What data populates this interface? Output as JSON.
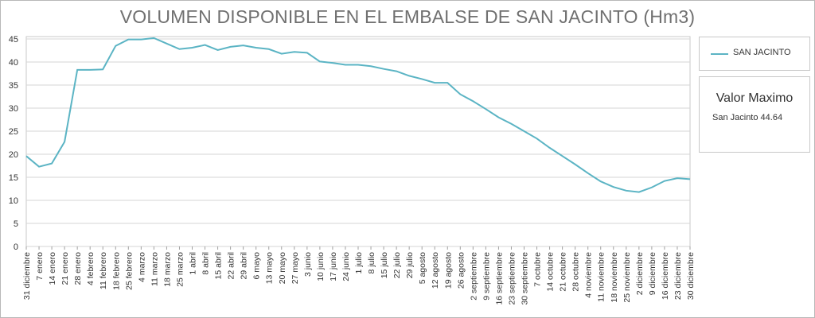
{
  "chart_data": {
    "type": "line",
    "title": "VOLUMEN DISPONIBLE EN EL EMBALSE DE SAN JACINTO (Hm3)",
    "xlabel": "",
    "ylabel": "",
    "ylim": [
      0,
      45
    ],
    "yticks": [
      0,
      5,
      10,
      15,
      20,
      25,
      30,
      35,
      40,
      45
    ],
    "grid": true,
    "legend_position": "right",
    "series_color": "#5bb4c4",
    "categories": [
      "31 diciembre",
      "7 enero",
      "14 enero",
      "21 enero",
      "28 enero",
      "4 febrero",
      "11 febrero",
      "18 febrero",
      "25 febrero",
      "4 marzo",
      "11 marzo",
      "18 marzo",
      "25 marzo",
      "1 abril",
      "8 abril",
      "15 abril",
      "22 abril",
      "29 abril",
      "6 mayo",
      "13 mayo",
      "20 mayo",
      "27 mayo",
      "3 junio",
      "10 junio",
      "17 junio",
      "24 junio",
      "1 julio",
      "8 julio",
      "15 julio",
      "22 julio",
      "29 julio",
      "5 agosto",
      "12 agosto",
      "19 agosto",
      "26 agosto",
      "2 septiembre",
      "9 septiembre",
      "16 septiembre",
      "23 septiembre",
      "30 septiembre",
      "7 octubre",
      "14 octubre",
      "21 octubre",
      "28 octubre",
      "4 noviembre",
      "11 noviembre",
      "18 noviembre",
      "25 noviembre",
      "2 diciembre",
      "9 diciembre",
      "16 diciembre",
      "23 diciembre",
      "30 diciembre"
    ],
    "series": [
      {
        "name": "SAN JACINTO",
        "values": [
          19.6,
          17.3,
          18.0,
          22.7,
          38.3,
          38.3,
          38.4,
          43.5,
          44.9,
          44.9,
          45.2,
          44.0,
          42.8,
          43.1,
          43.7,
          42.6,
          43.3,
          43.6,
          43.1,
          42.8,
          41.8,
          42.2,
          42.0,
          40.1,
          39.8,
          39.4,
          39.4,
          39.1,
          38.5,
          38.0,
          37.0,
          36.3,
          35.5,
          35.5,
          33.0,
          31.5,
          29.8,
          28.0,
          26.6,
          25.0,
          23.4,
          21.4,
          19.6,
          17.8,
          15.9,
          14.1,
          12.9,
          12.1,
          11.8,
          12.8,
          14.2,
          14.8,
          14.6
        ]
      }
    ],
    "max_box": {
      "title": "Valor Maximo",
      "text": "San Jacinto 44.64"
    }
  }
}
